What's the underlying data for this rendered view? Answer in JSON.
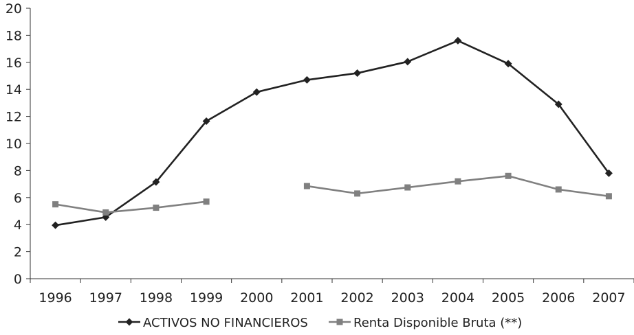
{
  "chart_data": {
    "type": "line",
    "categories": [
      "1996",
      "1997",
      "1998",
      "1999",
      "2000",
      "2001",
      "2002",
      "2003",
      "2004",
      "2005",
      "2006",
      "2007"
    ],
    "ylim": [
      0,
      20
    ],
    "yticks": [
      "0",
      "2",
      "4",
      "6",
      "8",
      "10",
      "12",
      "14",
      "16",
      "18",
      "20"
    ],
    "grid": false,
    "legend_position": "bottom",
    "series": [
      {
        "name": "ACTIVOS NO FINANCIEROS",
        "color": "#222222",
        "marker": "diamond",
        "values": [
          3.95,
          4.55,
          7.15,
          11.65,
          13.8,
          14.7,
          15.2,
          16.05,
          17.6,
          15.9,
          12.9,
          7.8
        ]
      },
      {
        "name": "Renta Disponible Bruta (**)",
        "color": "#808080",
        "marker": "square",
        "values": [
          5.5,
          4.9,
          5.25,
          5.7,
          null,
          6.85,
          6.3,
          6.75,
          7.2,
          7.6,
          6.6,
          6.1
        ]
      }
    ]
  }
}
